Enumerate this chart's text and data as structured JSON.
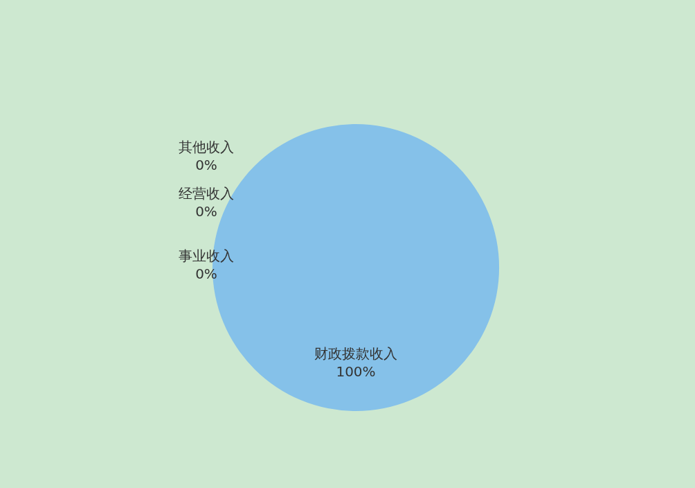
{
  "chart_data": {
    "type": "pie",
    "categories": [
      "财政拨款收入",
      "事业收入",
      "经营收入",
      "其他收入"
    ],
    "values": [
      100,
      0,
      0,
      0
    ],
    "value_labels": [
      "100%",
      "0%",
      "0%",
      "0%"
    ],
    "colors": [
      "#85c1e9",
      "#f5b041",
      "#82e0aa",
      "#c39bd3"
    ],
    "legend": false
  }
}
